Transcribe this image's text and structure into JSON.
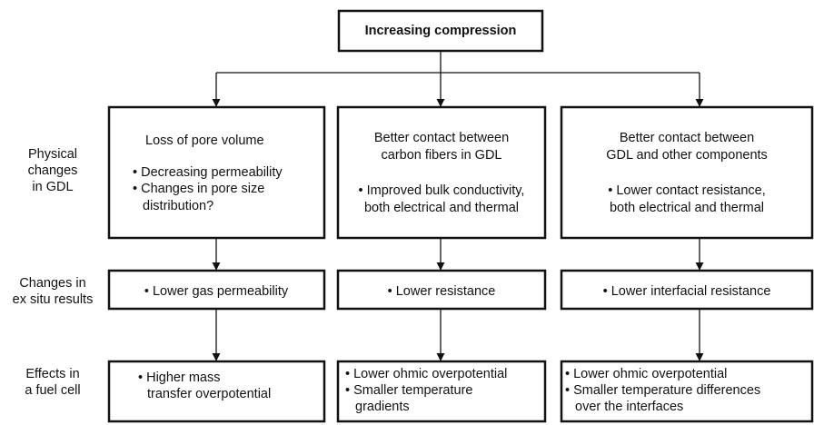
{
  "title": "Increasing compression",
  "row_labels": [
    [
      "Physical",
      "changes",
      "in GDL"
    ],
    [
      "Changes in",
      "ex situ results"
    ],
    [
      "Effects in",
      "a fuel cell"
    ]
  ],
  "columns": [
    {
      "physical": [
        "Loss of pore volume",
        "• Decreasing permeability",
        "• Changes in pore size",
        "distribution?"
      ],
      "ex_situ": [
        "• Lower gas permeability"
      ],
      "fuel_cell": [
        "• Higher mass",
        "transfer overpotential"
      ]
    },
    {
      "physical": [
        "Better contact between",
        "carbon fibers in GDL",
        "• Improved bulk conductivity,",
        "both electrical and thermal"
      ],
      "ex_situ": [
        "• Lower resistance"
      ],
      "fuel_cell": [
        "• Lower ohmic overpotential",
        "• Smaller temperature",
        "gradients"
      ]
    },
    {
      "physical": [
        "Better contact between",
        "GDL and other components",
        "• Lower contact resistance,",
        "both electrical and thermal"
      ],
      "ex_situ": [
        "• Lower interfacial resistance"
      ],
      "fuel_cell": [
        "• Lower ohmic overpotential",
        "• Smaller temperature differences",
        "over the interfaces"
      ]
    }
  ]
}
